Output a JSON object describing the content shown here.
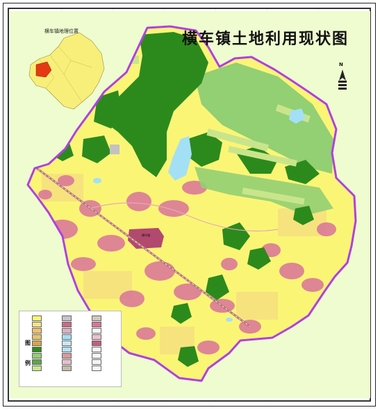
{
  "map": {
    "title": "横车镇土地利用现状图",
    "inset_title": "横车镇地理位置",
    "town_label": "横车镇",
    "north_label": "N",
    "legend_label_a": "图",
    "legend_label_b": "例"
  },
  "colors": {
    "background": "#eefccf",
    "boundary": "#b040e0",
    "farmland": "#fbf576",
    "dry_land": "#f6e37d",
    "forest": "#2c8a1d",
    "garden_land": "#93cf73",
    "grassland": "#c9e58c",
    "settlement": "#d9739a",
    "urban": "#b2496e",
    "water": "#a3e0f6",
    "road": "#b7767c",
    "bare": "#c2c2c2",
    "inset_region": "#f8ef7a",
    "inset_highlight": "#e43a14"
  },
  "legend": {
    "items": [
      {
        "color": "#fbf576"
      },
      {
        "color": "#c9c3cc"
      },
      {
        "color": "#cfcab7"
      },
      {
        "color": "#f6e37d"
      },
      {
        "color": "#c96b86"
      },
      {
        "color": "#d9739a"
      },
      {
        "color": "#f3c06a"
      },
      {
        "color": "#dbb0c4"
      },
      {
        "color": "#f5f5f5"
      },
      {
        "color": "#e6c46c"
      },
      {
        "color": "#a3e0f6"
      },
      {
        "color": "#eec0d0"
      },
      {
        "color": "#d8a545"
      },
      {
        "color": "#c8e8f7"
      },
      {
        "color": "#c05f7a"
      },
      {
        "color": "#2c8a1d"
      },
      {
        "color": "#b7dff0"
      },
      {
        "color": "#f5f5f5"
      },
      {
        "color": "#93cf73"
      },
      {
        "color": "#d69b9b"
      },
      {
        "color": "#f5f5f5"
      },
      {
        "color": "#5aa74a"
      },
      {
        "color": "#e6c1cb"
      },
      {
        "color": "#f5f5f5"
      },
      {
        "color": "#c9e58c"
      },
      {
        "color": "#c2bca8"
      },
      {
        "color": "#f5f5f5"
      }
    ]
  }
}
